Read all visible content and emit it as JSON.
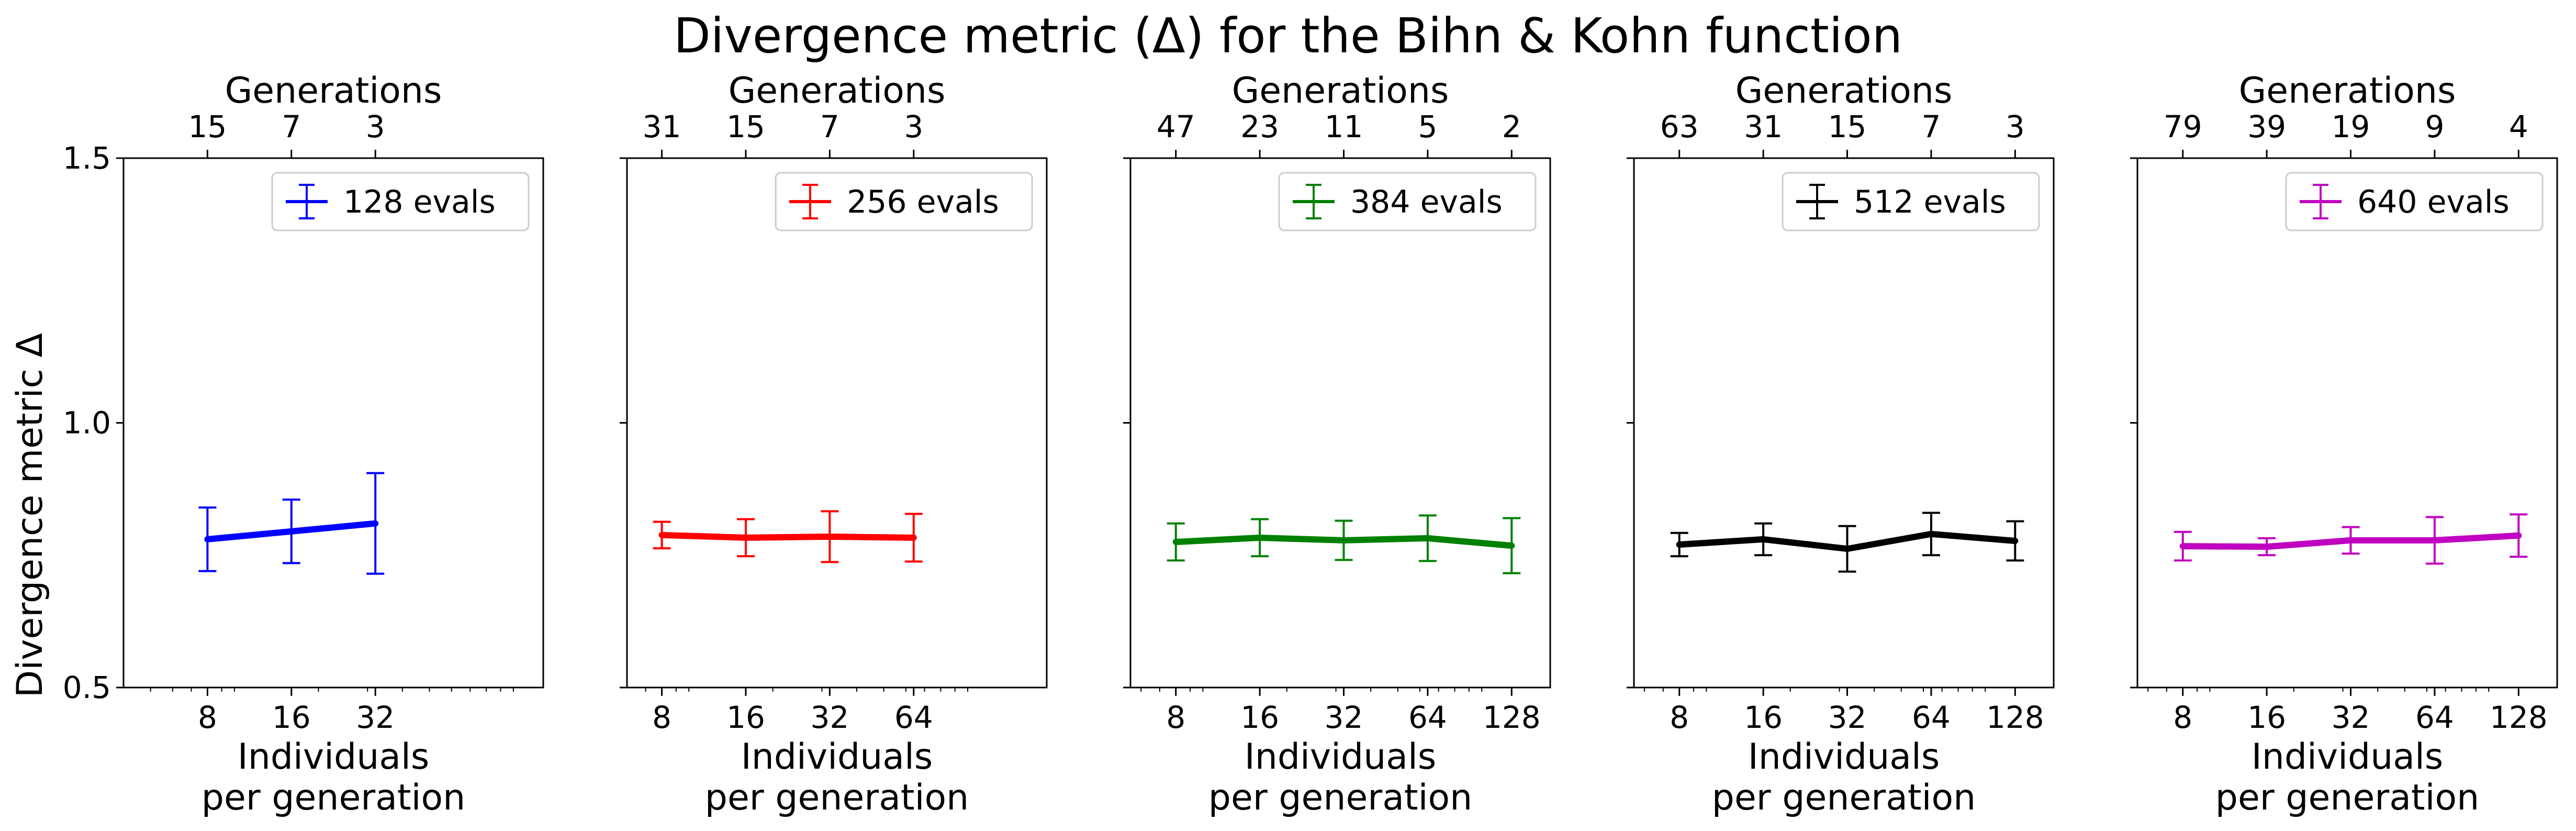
{
  "figure": {
    "title": "Divergence metric (Δ) for the Bihn & Kohn function",
    "ylabel": "Divergence metric Δ",
    "top_xlabel": "Generations",
    "bottom_xlabel_line1": "Individuals",
    "bottom_xlabel_line2": "per generation"
  },
  "chart_data": [
    {
      "type": "line",
      "x_scale": "log",
      "xlim": [
        4,
        128
      ],
      "ylim": [
        0.5,
        1.5
      ],
      "y_ticks": [
        "0.5",
        "1.0",
        "1.5"
      ],
      "x_ticks": [
        8,
        16,
        32
      ],
      "top_ticks": [
        8,
        16,
        32
      ],
      "top_tick_labels": [
        "15",
        "7",
        "3"
      ],
      "series": [
        {
          "name": "128 evals",
          "color": "#0000ff",
          "x": [
            8,
            16,
            32
          ],
          "y": [
            0.78,
            0.795,
            0.81
          ],
          "yerr": [
            0.06,
            0.06,
            0.095
          ]
        }
      ]
    },
    {
      "type": "line",
      "x_scale": "log",
      "xlim": [
        6,
        192
      ],
      "ylim": [
        0.5,
        1.5
      ],
      "y_ticks": [
        "0.5",
        "1.0",
        "1.5"
      ],
      "x_ticks": [
        8,
        16,
        32,
        64
      ],
      "top_ticks": [
        8,
        16,
        32,
        64
      ],
      "top_tick_labels": [
        "31",
        "15",
        "7",
        "3"
      ],
      "series": [
        {
          "name": "256 evals",
          "color": "#ff0000",
          "x": [
            8,
            16,
            32,
            64
          ],
          "y": [
            0.788,
            0.783,
            0.785,
            0.783
          ],
          "yerr": [
            0.025,
            0.035,
            0.048,
            0.045
          ]
        }
      ]
    },
    {
      "type": "line",
      "x_scale": "log",
      "xlim": [
        5.5,
        176
      ],
      "ylim": [
        0.5,
        1.5
      ],
      "y_ticks": [
        "0.5",
        "1.0",
        "1.5"
      ],
      "x_ticks": [
        8,
        16,
        32,
        64,
        128
      ],
      "top_ticks": [
        8,
        16,
        32,
        64,
        128
      ],
      "top_tick_labels": [
        "47",
        "23",
        "11",
        "5",
        "2"
      ],
      "series": [
        {
          "name": "384 evals",
          "color": "#008000",
          "x": [
            8,
            16,
            32,
            64,
            128
          ],
          "y": [
            0.775,
            0.783,
            0.778,
            0.782,
            0.768
          ],
          "yerr": [
            0.035,
            0.035,
            0.037,
            0.043,
            0.052
          ]
        }
      ]
    },
    {
      "type": "line",
      "x_scale": "log",
      "xlim": [
        5.5,
        176
      ],
      "ylim": [
        0.5,
        1.5
      ],
      "y_ticks": [
        "0.5",
        "1.0",
        "1.5"
      ],
      "x_ticks": [
        8,
        16,
        32,
        64,
        128
      ],
      "top_ticks": [
        8,
        16,
        32,
        64,
        128
      ],
      "top_tick_labels": [
        "63",
        "31",
        "15",
        "7",
        "3"
      ],
      "series": [
        {
          "name": "512 evals",
          "color": "#000000",
          "x": [
            8,
            16,
            32,
            64,
            128
          ],
          "y": [
            0.77,
            0.78,
            0.762,
            0.79,
            0.777
          ],
          "yerr": [
            0.022,
            0.03,
            0.043,
            0.04,
            0.037
          ]
        }
      ]
    },
    {
      "type": "line",
      "x_scale": "log",
      "xlim": [
        5.5,
        176
      ],
      "ylim": [
        0.5,
        1.5
      ],
      "y_ticks": [
        "0.5",
        "1.0",
        "1.5"
      ],
      "x_ticks": [
        8,
        16,
        32,
        64,
        128
      ],
      "top_ticks": [
        8,
        16,
        32,
        64,
        128
      ],
      "top_tick_labels": [
        "79",
        "39",
        "19",
        "9",
        "4"
      ],
      "series": [
        {
          "name": "640 evals",
          "color": "#c000c0",
          "x": [
            8,
            16,
            32,
            64,
            128
          ],
          "y": [
            0.767,
            0.766,
            0.778,
            0.778,
            0.787
          ],
          "yerr": [
            0.027,
            0.016,
            0.025,
            0.044,
            0.04
          ]
        }
      ]
    }
  ]
}
